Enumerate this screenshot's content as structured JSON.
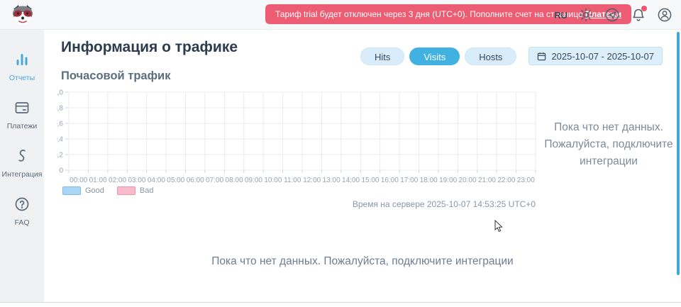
{
  "header": {
    "banner_text": "Тариф trial будет отключен через 3 дня (UTC+0). Пополните счет на странице ",
    "banner_link": "Платежи",
    "language": "RU"
  },
  "sidebar": {
    "items": [
      {
        "label": "Отчеты",
        "icon": "bar-chart-icon",
        "active": true
      },
      {
        "label": "Платежи",
        "icon": "card-icon",
        "active": false
      },
      {
        "label": "Интеграция",
        "icon": "integration-icon",
        "active": false
      },
      {
        "label": "FAQ",
        "icon": "question-icon",
        "active": false
      }
    ]
  },
  "main": {
    "title": "Информация о трафике",
    "tabs": [
      {
        "label": "Hits",
        "active": false
      },
      {
        "label": "Visits",
        "active": true
      },
      {
        "label": "Hosts",
        "active": false
      }
    ],
    "date_range": "2025-10-07 - 2025-10-07",
    "section_title": "Почасовой трафик",
    "server_time": "Время на сервере 2025-10-07 14:53:25 UTC+0",
    "no_data_side": "Пока что нет данных. Пожалуйста, подключите интеграции",
    "no_data_bottom": "Пока что нет данных. Пожалуйста, подключите интеграции"
  },
  "chart_data": {
    "type": "bar",
    "title": "Почасовой трафик",
    "empty": true,
    "categories": [
      "00:00",
      "01:00",
      "02:00",
      "03:00",
      "04:00",
      "05:00",
      "06:00",
      "07:00",
      "08:00",
      "09:00",
      "10:00",
      "11:00",
      "12:00",
      "13:00",
      "14:00",
      "15:00",
      "16:00",
      "17:00",
      "18:00",
      "19:00",
      "20:00",
      "21:00",
      "22:00",
      "23:00"
    ],
    "series": [
      {
        "name": "Good",
        "values": [],
        "fill": "#a9d6f5",
        "border": "#7fbde8"
      },
      {
        "name": "Bad",
        "values": [],
        "fill": "#f9bacc",
        "border": "#f191ab"
      }
    ],
    "ylim": [
      0,
      1
    ],
    "ytick_labels": [
      "1,0",
      "0,8",
      "0,6",
      "0,4",
      "0,2",
      "0"
    ],
    "grid": true,
    "legend_position": "bottom-left"
  },
  "colors": {
    "accent_blue": "#41b1e1",
    "banner_red": "#ec5c72",
    "grid_line": "#e8ebee",
    "tick_line": "#cfd6dc",
    "axis_text": "#98a3ae",
    "scrollbar": "#44a8d6"
  }
}
